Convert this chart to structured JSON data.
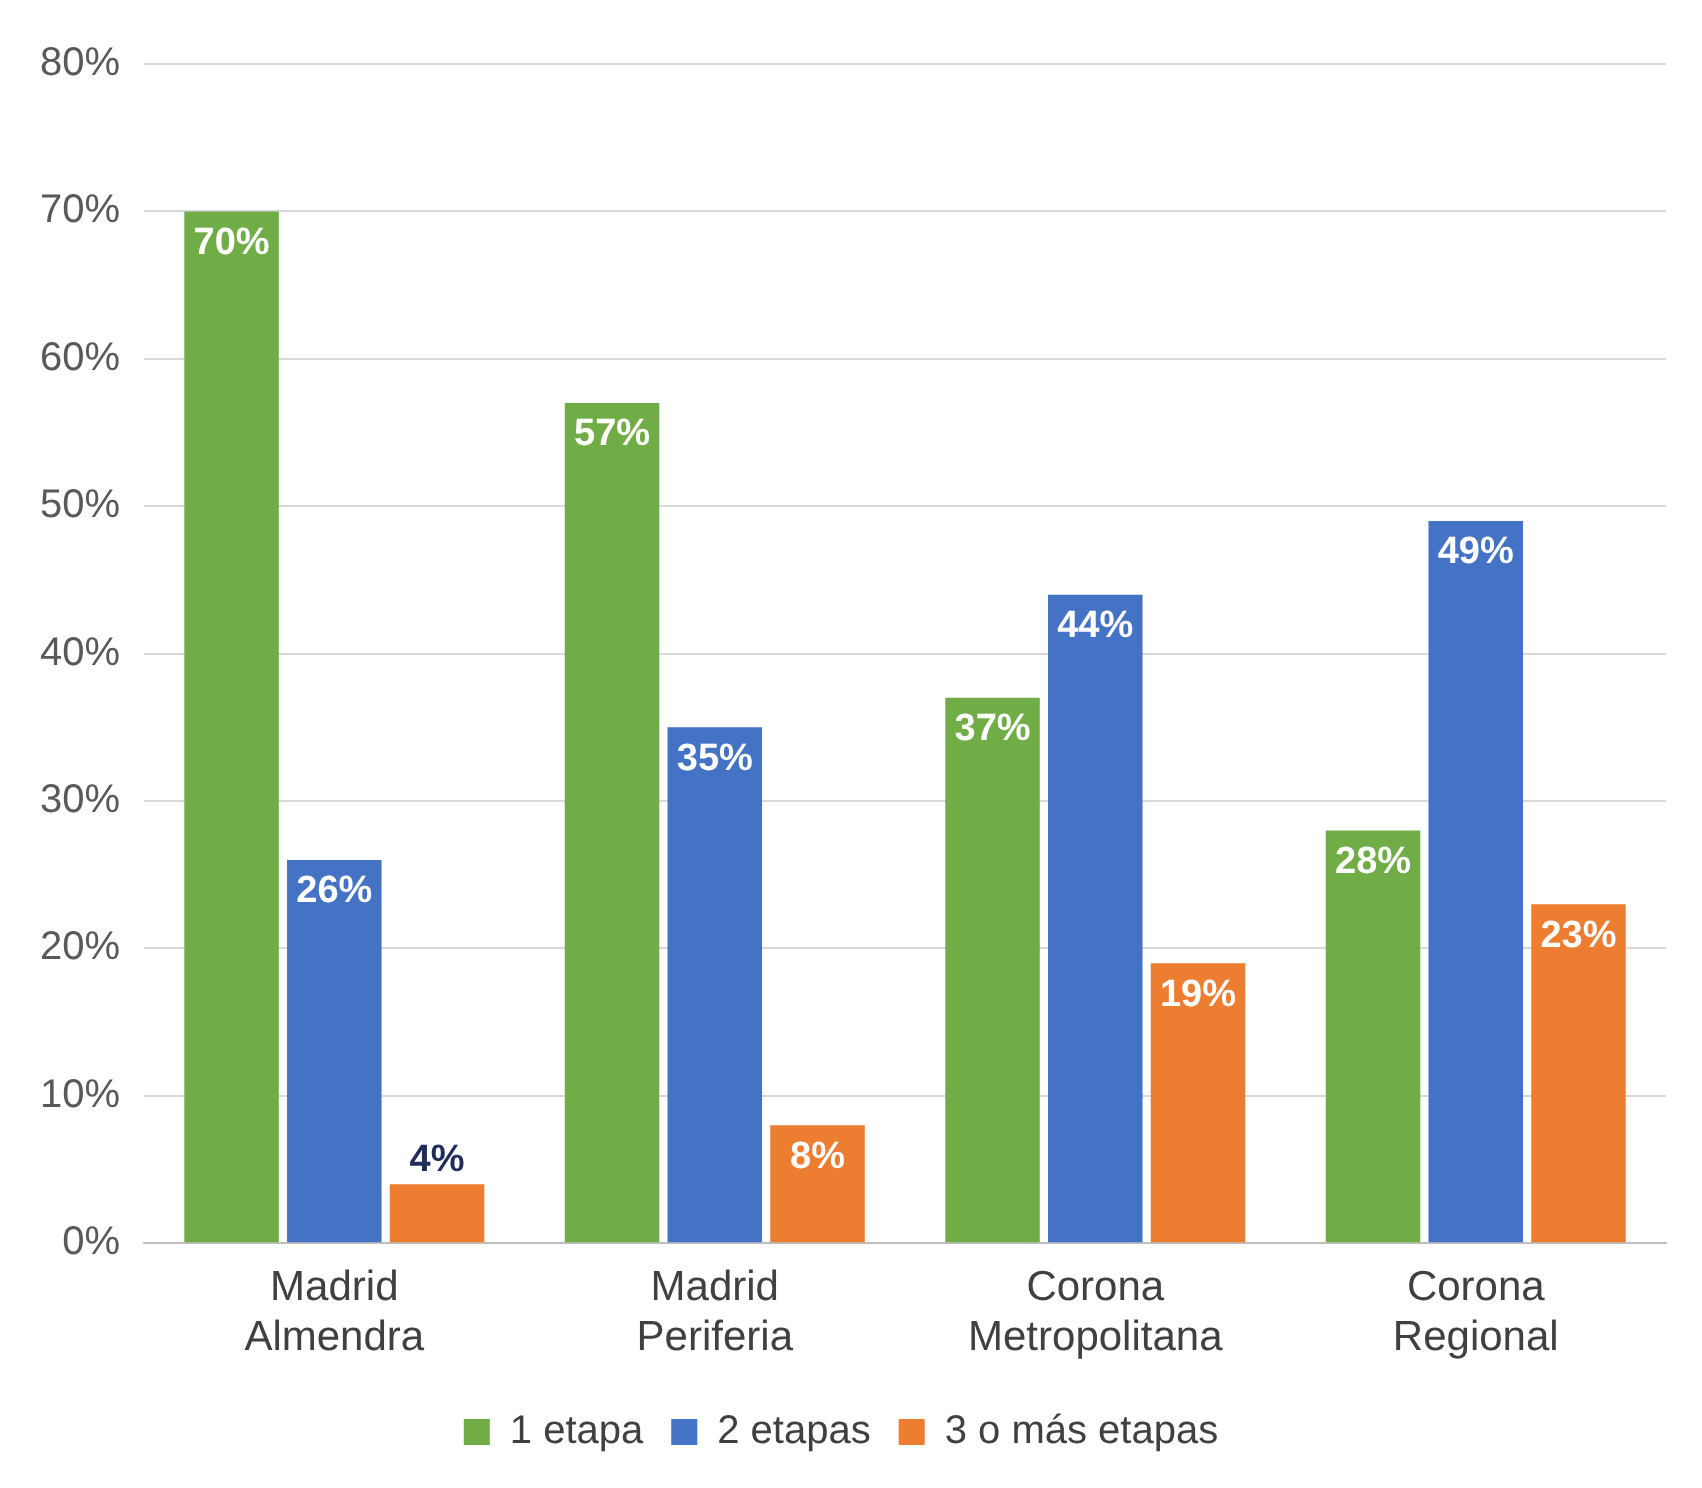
{
  "chart_data": {
    "type": "bar",
    "categories": [
      "Madrid Almendra",
      "Madrid Periferia",
      "Corona Metropolitana",
      "Corona Regional"
    ],
    "series": [
      {
        "name": "1 etapa",
        "color": "#70ad47",
        "values": [
          70,
          57,
          37,
          28
        ],
        "value_labels": [
          "70%",
          "57%",
          "37%",
          "28%"
        ]
      },
      {
        "name": "2 etapas",
        "color": "#4472c4",
        "values": [
          26,
          35,
          44,
          49
        ],
        "value_labels": [
          "26%",
          "35%",
          "44%",
          "49%"
        ]
      },
      {
        "name": "3 o más etapas",
        "color": "#ed7d31",
        "values": [
          4,
          8,
          19,
          23
        ],
        "value_labels": [
          "4%",
          "8%",
          "19%",
          "23%"
        ]
      }
    ],
    "ylim": [
      0,
      80
    ],
    "yticks": [
      {
        "value": 0,
        "label": "0%"
      },
      {
        "value": 10,
        "label": "10%"
      },
      {
        "value": 20,
        "label": "20%"
      },
      {
        "value": 30,
        "label": "30%"
      },
      {
        "value": 40,
        "label": "40%"
      },
      {
        "value": 50,
        "label": "50%"
      },
      {
        "value": 60,
        "label": "60%"
      },
      {
        "value": 70,
        "label": "70%"
      },
      {
        "value": 80,
        "label": "80%"
      }
    ],
    "grid": "y",
    "legend": "bottom"
  }
}
